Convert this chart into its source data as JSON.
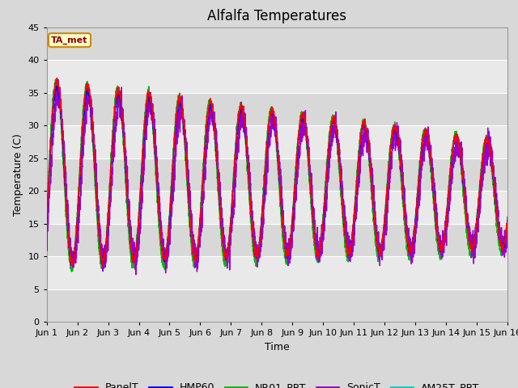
{
  "title": "Alfalfa Temperatures",
  "ylabel": "Temperature (C)",
  "xlabel": "Time",
  "ylim": [
    0,
    45
  ],
  "yticks": [
    0,
    5,
    10,
    15,
    20,
    25,
    30,
    35,
    40,
    45
  ],
  "annotation": "TA_met",
  "series_colors": {
    "PanelT": "#ff0000",
    "HMP60": "#0000ff",
    "NR01_PRT": "#00bb00",
    "SonicT": "#9900cc",
    "AM25T_PRT": "#00cccc"
  },
  "bg_color": "#d8d8d8",
  "white_band_alpha": 1.0,
  "title_fontsize": 12,
  "axis_fontsize": 9,
  "tick_fontsize": 8,
  "legend_fontsize": 9
}
